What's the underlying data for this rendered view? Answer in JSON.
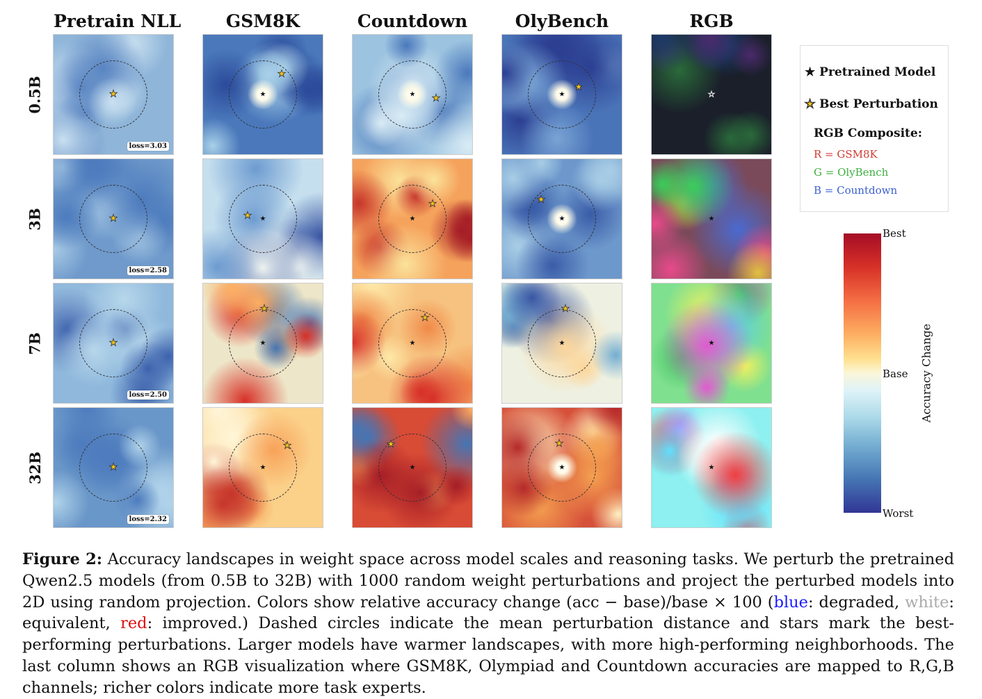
{
  "columns": [
    "Pretrain NLL",
    "GSM8K",
    "Countdown",
    "OlyBench",
    "RGB"
  ],
  "rows": [
    "0.5B",
    "3B",
    "7B",
    "32B"
  ],
  "loss_labels": [
    "loss=3.03",
    "loss=2.58",
    "loss=2.50",
    "loss=2.32"
  ],
  "legend": {
    "pretrained": "Pretrained Model",
    "best": "Best Perturbation",
    "rgb_title": "RGB Composite:",
    "r": "R = GSM8K",
    "g": "G = OlyBench",
    "b": "B = Countdown",
    "colors": {
      "r": "#d03a32",
      "g": "#3fae3f",
      "b": "#3a5fd0",
      "star": "#f5c518"
    }
  },
  "colorbar": {
    "top": "Best",
    "mid": "Base",
    "bottom": "Worst",
    "title": "Accuracy Change"
  },
  "caption": {
    "label": "Figure 2:",
    "p1": " Accuracy landscapes in weight space across model scales and reasoning tasks. We perturb the pretrained Qwen2.5 models (from 0.5B to 32B) with 1000 random weight perturbations and project the perturbed models into 2D using random projection. Colors show relative accuracy change (acc − base)/base × 100 (",
    "blue": "blue",
    "p2": ": degraded, ",
    "white": "white",
    "p3": ": equivalent, ",
    "red": "red",
    "p4": ": improved.) Dashed circles indicate the mean perturbation distance and stars mark the best-performing perturbations. Larger models have warmer landscapes, with more high-performing neighborhoods. The last column shows an RGB visualization where GSM8K, Olympiad and Countdown accuracies are mapped to R,G,B channels; richer colors indicate more task experts."
  }
}
